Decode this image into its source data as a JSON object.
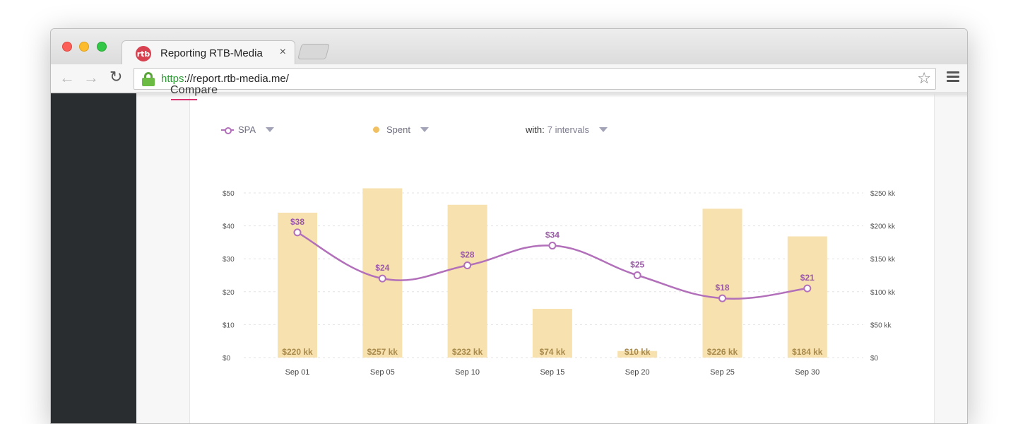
{
  "browser": {
    "tab_title": "Reporting RTB-Media",
    "favicon_text": "rtb",
    "tab_close": "×",
    "url_scheme": "https",
    "url_rest": "://report.rtb-media.me/"
  },
  "section": {
    "title": "Compare"
  },
  "legend": {
    "metric1": "SPA",
    "metric2": "Spent",
    "with_label": "with:",
    "with_value": "7 intervals"
  },
  "colors": {
    "spa_line": "#b26fba",
    "bar": "#f7e1ae",
    "bar_label": "#a88a4c",
    "accent": "#d8336e"
  },
  "chart_data": {
    "type": "bar",
    "categories": [
      "Sep 01",
      "Sep 05",
      "Sep 10",
      "Sep 15",
      "Sep 20",
      "Sep 25",
      "Sep 30"
    ],
    "series": [
      {
        "name": "Spent",
        "type": "bar",
        "axis": "right",
        "values": [
          220,
          257,
          232,
          74,
          10,
          226,
          184
        ],
        "labels": [
          "$220 kk",
          "$257 kk",
          "$232 kk",
          "$74 kk",
          "$10 kk",
          "$226 kk",
          "$184 kk"
        ]
      },
      {
        "name": "SPA",
        "type": "line",
        "axis": "left",
        "values": [
          38,
          24,
          28,
          34,
          25,
          18,
          21
        ],
        "labels": [
          "$38",
          "$24",
          "$28",
          "$34",
          "$25",
          "$18",
          "$21"
        ]
      }
    ],
    "y_left": {
      "ticks": [
        "$0",
        "$10",
        "$20",
        "$30",
        "$40",
        "$50"
      ],
      "ylim": [
        0,
        50
      ]
    },
    "y_right": {
      "ticks": [
        "$0",
        "$50 kk",
        "$100 kk",
        "$150 kk",
        "$200 kk",
        "$250 kk"
      ],
      "ylim": [
        0,
        250
      ]
    },
    "grid": "horizontal-dashed"
  }
}
